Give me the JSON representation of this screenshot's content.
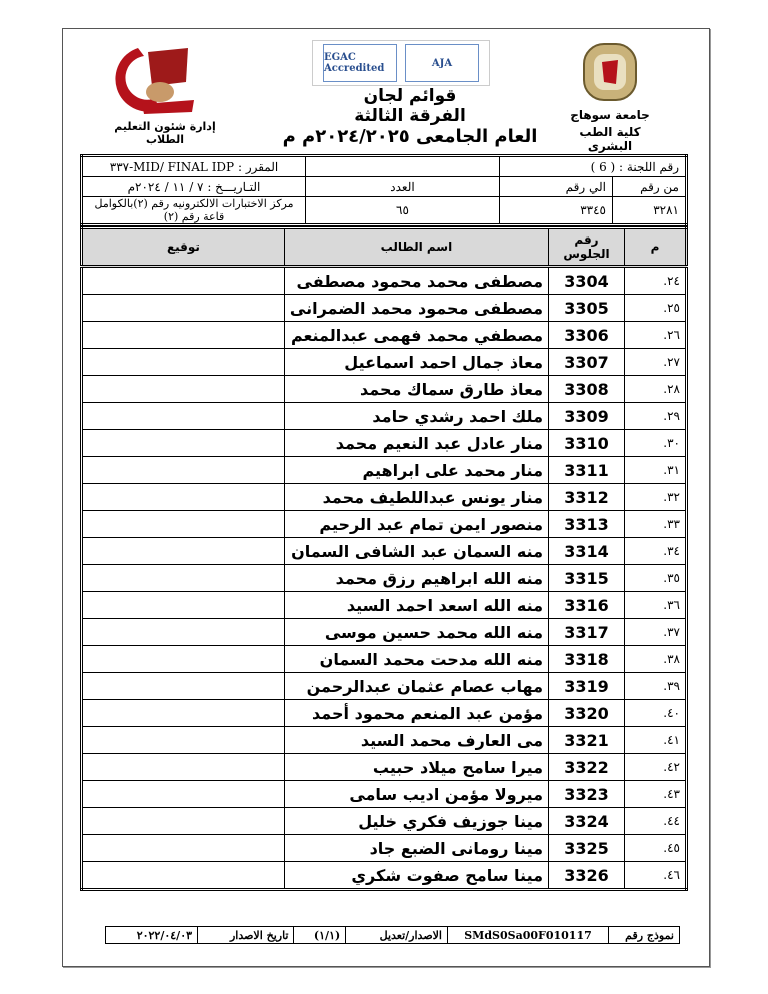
{
  "header": {
    "university": "جامعة سوهاج",
    "faculty": "كلية الطب البشرى",
    "department": "إدارة شئون التعليم الطلاب",
    "title": "قوائم لجان",
    "year_level": "الفرقة الثالثة",
    "academic_year": "العام الجامعى ٢٠٢٤/٢٠٢٥م م",
    "accreditation_logos": [
      "EGAC Accredited",
      "AJA"
    ],
    "logo_left_text": "جامعة سوهاج كلية الطب"
  },
  "info": {
    "committee_label": "رقم اللجنة : ( 6 )",
    "course_label": "المقرر : MID/ FINAL IDP-٣٣٧",
    "from_label": "من رقم",
    "to_label": "الي رقم",
    "count_label": "العدد",
    "date_label": "التـاريـــخ :  ٧ / ١١ / ٢٠٢٤م",
    "from_value": "٣٢٨١",
    "to_value": "٣٣٤٥",
    "count_value": "٦٥",
    "location": "مركز الاختبارات الالكترونيه رقم (٢)بالكوامل قاعة رقم (٢)"
  },
  "table": {
    "columns": [
      "م",
      "رقم الجلوس",
      "اسم الطالب",
      "توقيع"
    ],
    "rows": [
      {
        "idx": "٢٤.",
        "seat": "3304",
        "name": "مصطفى محمد محمود مصطفى"
      },
      {
        "idx": "٢٥.",
        "seat": "3305",
        "name": "مصطفى محمود محمد الضمرانى"
      },
      {
        "idx": "٢٦.",
        "seat": "3306",
        "name": "مصطفي محمد فهمى عبدالمنعم"
      },
      {
        "idx": "٢٧.",
        "seat": "3307",
        "name": "معاذ جمال احمد اسماعيل"
      },
      {
        "idx": "٢٨.",
        "seat": "3308",
        "name": "معاذ طارق سماك محمد"
      },
      {
        "idx": "٢٩.",
        "seat": "3309",
        "name": "ملك احمد رشدي حامد"
      },
      {
        "idx": "٣٠.",
        "seat": "3310",
        "name": "منار عادل عبد النعيم محمد"
      },
      {
        "idx": "٣١.",
        "seat": "3311",
        "name": "منار محمد على ابراهيم"
      },
      {
        "idx": "٣٢.",
        "seat": "3312",
        "name": "منار يونس عبداللطيف محمد"
      },
      {
        "idx": "٣٣.",
        "seat": "3313",
        "name": "منصور ايمن تمام عبد الرحيم"
      },
      {
        "idx": "٣٤.",
        "seat": "3314",
        "name": "منه السمان عبد الشافى السمان"
      },
      {
        "idx": "٣٥.",
        "seat": "3315",
        "name": "منه الله ابراهيم رزق محمد"
      },
      {
        "idx": "٣٦.",
        "seat": "3316",
        "name": "منه الله اسعد احمد السيد"
      },
      {
        "idx": "٣٧.",
        "seat": "3317",
        "name": "منه الله محمد حسين موسى"
      },
      {
        "idx": "٣٨.",
        "seat": "3318",
        "name": "منه الله مدحت محمد السمان"
      },
      {
        "idx": "٣٩.",
        "seat": "3319",
        "name": "مهاب عصام عثمان عبدالرحمن"
      },
      {
        "idx": "٤٠.",
        "seat": "3320",
        "name": "مؤمن عبد المنعم محمود أحمد"
      },
      {
        "idx": "٤١.",
        "seat": "3321",
        "name": "مى العارف محمد السيد"
      },
      {
        "idx": "٤٢.",
        "seat": "3322",
        "name": "ميرا سامح ميلاد حبيب"
      },
      {
        "idx": "٤٣.",
        "seat": "3323",
        "name": "ميرولا مؤمن اديب سامى"
      },
      {
        "idx": "٤٤.",
        "seat": "3324",
        "name": "مينا جوزيف فكري خليل"
      },
      {
        "idx": "٤٥.",
        "seat": "3325",
        "name": "مينا رومانى الضبع جاد"
      },
      {
        "idx": "٤٦.",
        "seat": "3326",
        "name": "مينا سامح صفوت شكري"
      }
    ]
  },
  "footer": {
    "form_label": "نموذج رقم",
    "form_value": "SMdS0Sa00F010117",
    "version_label": "الاصدار/تعديل",
    "version_value": "(١/١)",
    "issue_date_label": "تاريخ الاصدار",
    "issue_date_value": "٢٠٢٢/٠٤/٠٣"
  },
  "colors": {
    "header_fill": "#d9d9d9",
    "logo_red": "#b5121b"
  }
}
